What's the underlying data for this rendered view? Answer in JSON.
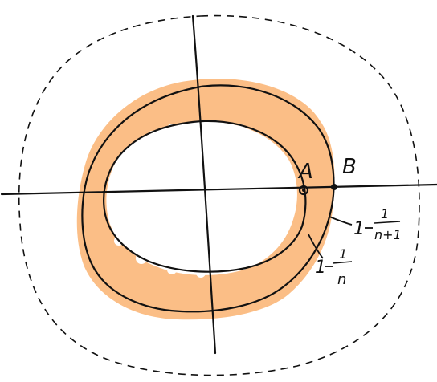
{
  "labels": {
    "point_a": "A",
    "point_b": "B",
    "outer_radius_num": "1",
    "outer_radius_whole": "1",
    "outer_radius_den": "n+1",
    "inner_radius_num": "1",
    "inner_radius_whole": "1",
    "inner_radius_den": "n"
  },
  "colors": {
    "annulus_fill": "#FBBE86",
    "stroke": "#111111",
    "background": "#FFFFFF"
  }
}
